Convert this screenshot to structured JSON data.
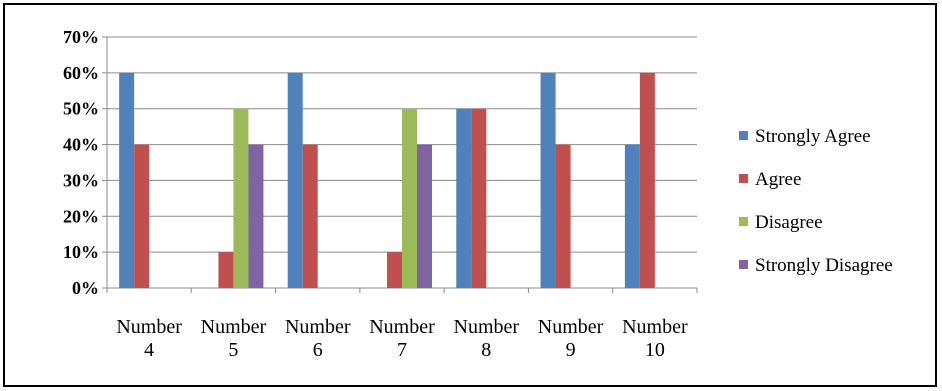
{
  "chart_data": {
    "type": "bar",
    "title": "",
    "xlabel": "",
    "ylabel": "",
    "categories": [
      [
        "Number",
        "4"
      ],
      [
        "Number",
        "5"
      ],
      [
        "Number",
        "6"
      ],
      [
        "Number",
        "7"
      ],
      [
        "Number",
        "8"
      ],
      [
        "Number",
        "9"
      ],
      [
        "Number",
        "10"
      ]
    ],
    "series": [
      {
        "name": "Strongly Agree",
        "color": "#4F81BD",
        "values": [
          60,
          0,
          60,
          0,
          50,
          60,
          40
        ]
      },
      {
        "name": "Agree",
        "color": "#C0504D",
        "values": [
          40,
          10,
          40,
          10,
          50,
          40,
          60
        ]
      },
      {
        "name": "Disagree",
        "color": "#9BBB59",
        "values": [
          0,
          50,
          0,
          50,
          0,
          0,
          0
        ]
      },
      {
        "name": "Strongly Disagree",
        "color": "#8064A2",
        "values": [
          0,
          40,
          0,
          40,
          0,
          0,
          0
        ]
      }
    ],
    "ylim": [
      0,
      70
    ],
    "yticks": [
      "0%",
      "10%",
      "20%",
      "30%",
      "40%",
      "50%",
      "60%",
      "70%"
    ],
    "grid": true,
    "legend": "right"
  }
}
